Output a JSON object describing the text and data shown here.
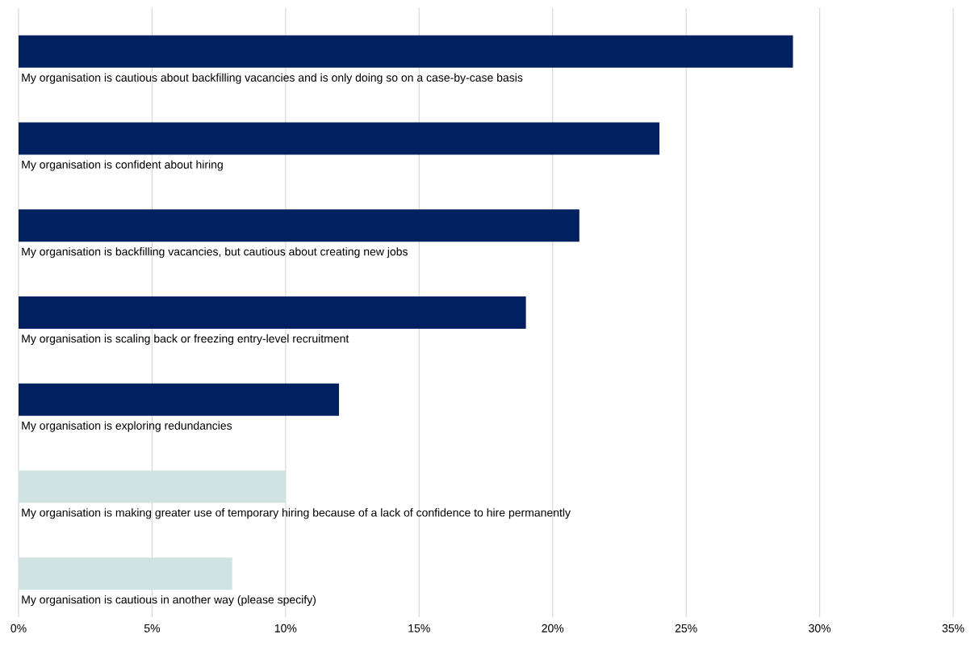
{
  "chart_data": {
    "type": "bar",
    "orientation": "horizontal",
    "categories": [
      "My organisation is cautious about backfilling vacancies and is only doing so on a case-by-case basis",
      "My organisation is confident about hiring",
      "My organisation is backfilling vacancies, but cautious about creating new jobs",
      "My organisation is scaling back or freezing entry-level recruitment",
      "My organisation is exploring redundancies",
      "My organisation is making greater use of temporary hiring because of a lack of confidence to hire permanently",
      "My organisation is cautious in another way (please specify)"
    ],
    "values": [
      29,
      24,
      21,
      19,
      12,
      10,
      8
    ],
    "colors": [
      "#002060",
      "#002060",
      "#002060",
      "#002060",
      "#002060",
      "#d0e3e3",
      "#d0e3e3"
    ],
    "xlim": [
      0,
      35
    ],
    "xticks": [
      {
        "value": 0,
        "label": "0%"
      },
      {
        "value": 5,
        "label": "5%"
      },
      {
        "value": 10,
        "label": "10%"
      },
      {
        "value": 15,
        "label": "15%"
      },
      {
        "value": 20,
        "label": "20%"
      },
      {
        "value": 25,
        "label": "25%"
      },
      {
        "value": 30,
        "label": "30%"
      },
      {
        "value": 35,
        "label": "35%"
      }
    ],
    "grid": "x"
  }
}
